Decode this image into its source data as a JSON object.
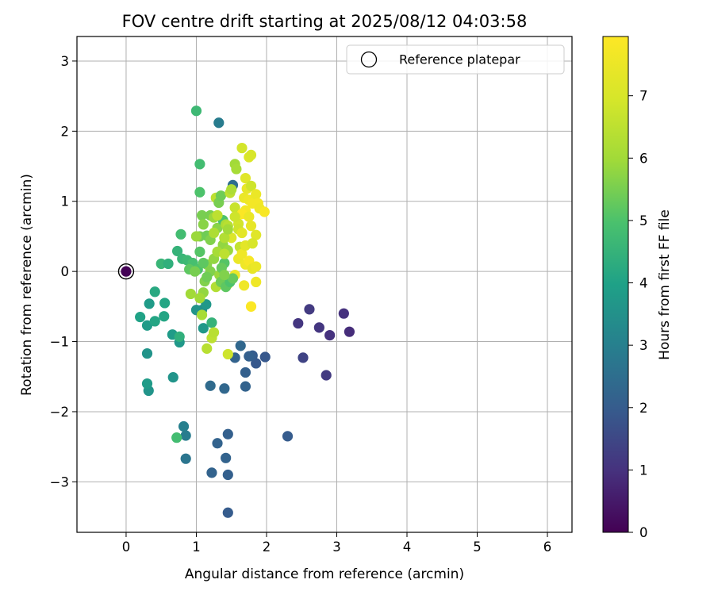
{
  "chart_data": {
    "type": "scatter",
    "title": "FOV centre drift starting at 2025/08/12 04:03:58",
    "xlabel": "Angular distance from reference (arcmin)",
    "ylabel": "Rotation from reference (arcmin)",
    "xlim": [
      -0.7,
      6.35
    ],
    "ylim": [
      -3.72,
      3.35
    ],
    "xticks": [
      0,
      1,
      2,
      3,
      4,
      5,
      6
    ],
    "yticks": [
      -3,
      -2,
      -1,
      0,
      1,
      2,
      3
    ],
    "xtick_labels": [
      "0",
      "1",
      "2",
      "3",
      "4",
      "5",
      "6"
    ],
    "ytick_labels": [
      "−3",
      "−2",
      "−1",
      "0",
      "1",
      "2",
      "3"
    ],
    "grid": true,
    "legend": {
      "position": "top-right",
      "entries": [
        "Reference platepar"
      ]
    },
    "colorbar": {
      "label": "Hours from first FF file",
      "colormap": "viridis",
      "range": [
        0,
        7.95
      ],
      "ticks": [
        0,
        1,
        2,
        3,
        4,
        5,
        6,
        7
      ],
      "tick_labels": [
        "0",
        "1",
        "2",
        "3",
        "4",
        "5",
        "6",
        "7"
      ]
    },
    "reference_point": {
      "x": 0,
      "y": 0
    },
    "points": [
      {
        "x": 0.0,
        "y": 0.0,
        "h": 0.05
      },
      {
        "x": 2.45,
        "y": -0.74,
        "h": 1.1
      },
      {
        "x": 2.61,
        "y": -0.54,
        "h": 1.2
      },
      {
        "x": 2.75,
        "y": -0.8,
        "h": 1.1
      },
      {
        "x": 2.9,
        "y": -0.91,
        "h": 1.0
      },
      {
        "x": 3.1,
        "y": -0.6,
        "h": 1.0
      },
      {
        "x": 3.18,
        "y": -0.86,
        "h": 0.9
      },
      {
        "x": 2.85,
        "y": -1.48,
        "h": 1.2
      },
      {
        "x": 2.52,
        "y": -1.23,
        "h": 1.4
      },
      {
        "x": 1.98,
        "y": -1.22,
        "h": 1.9
      },
      {
        "x": 1.85,
        "y": -1.31,
        "h": 1.9
      },
      {
        "x": 1.8,
        "y": -1.2,
        "h": 2.0
      },
      {
        "x": 1.75,
        "y": -1.21,
        "h": 2.1
      },
      {
        "x": 1.7,
        "y": -1.44,
        "h": 2.1
      },
      {
        "x": 1.7,
        "y": -1.64,
        "h": 2.2
      },
      {
        "x": 1.55,
        "y": -1.23,
        "h": 2.2
      },
      {
        "x": 1.63,
        "y": -1.06,
        "h": 2.3
      },
      {
        "x": 1.4,
        "y": -1.67,
        "h": 2.3
      },
      {
        "x": 1.2,
        "y": -1.63,
        "h": 2.4
      },
      {
        "x": 2.3,
        "y": -2.35,
        "h": 2.0
      },
      {
        "x": 1.45,
        "y": -2.32,
        "h": 2.1
      },
      {
        "x": 1.3,
        "y": -2.45,
        "h": 2.2
      },
      {
        "x": 1.42,
        "y": -2.66,
        "h": 2.2
      },
      {
        "x": 1.45,
        "y": -2.9,
        "h": 2.1
      },
      {
        "x": 1.22,
        "y": -2.87,
        "h": 2.2
      },
      {
        "x": 1.45,
        "y": -3.44,
        "h": 2.0
      },
      {
        "x": 0.85,
        "y": -2.67,
        "h": 2.7
      },
      {
        "x": 0.85,
        "y": -2.34,
        "h": 2.9
      },
      {
        "x": 0.82,
        "y": -2.21,
        "h": 3.0
      },
      {
        "x": 0.72,
        "y": -2.37,
        "h": 4.8
      },
      {
        "x": 1.32,
        "y": 2.12,
        "h": 2.9
      },
      {
        "x": 1.52,
        "y": 1.23,
        "h": 2.5
      },
      {
        "x": 0.32,
        "y": -1.7,
        "h": 3.6
      },
      {
        "x": 0.3,
        "y": -1.6,
        "h": 3.8
      },
      {
        "x": 0.3,
        "y": -1.17,
        "h": 3.6
      },
      {
        "x": 0.67,
        "y": -1.51,
        "h": 3.6
      },
      {
        "x": 0.76,
        "y": -1.01,
        "h": 3.7
      },
      {
        "x": 0.66,
        "y": -0.9,
        "h": 3.8
      },
      {
        "x": 0.76,
        "y": -0.93,
        "h": 4.4
      },
      {
        "x": 0.3,
        "y": -0.77,
        "h": 3.8
      },
      {
        "x": 0.2,
        "y": -0.65,
        "h": 4.0
      },
      {
        "x": 0.41,
        "y": -0.71,
        "h": 4.1
      },
      {
        "x": 0.54,
        "y": -0.64,
        "h": 4.1
      },
      {
        "x": 0.55,
        "y": -0.45,
        "h": 4.1
      },
      {
        "x": 0.33,
        "y": -0.46,
        "h": 3.8
      },
      {
        "x": 0.41,
        "y": -0.29,
        "h": 4.2
      },
      {
        "x": 1.08,
        "y": -0.55,
        "h": 3.4
      },
      {
        "x": 1.0,
        "y": -0.55,
        "h": 3.6
      },
      {
        "x": 1.14,
        "y": -0.47,
        "h": 3.7
      },
      {
        "x": 1.1,
        "y": -0.81,
        "h": 3.7
      },
      {
        "x": 1.22,
        "y": -0.73,
        "h": 4.5
      },
      {
        "x": 0.5,
        "y": 0.11,
        "h": 4.6
      },
      {
        "x": 0.6,
        "y": 0.11,
        "h": 4.4
      },
      {
        "x": 0.73,
        "y": 0.29,
        "h": 4.5
      },
      {
        "x": 0.8,
        "y": 0.18,
        "h": 4.6
      },
      {
        "x": 0.78,
        "y": 0.53,
        "h": 4.8
      },
      {
        "x": 0.87,
        "y": 0.16,
        "h": 4.7
      },
      {
        "x": 0.95,
        "y": 0.12,
        "h": 4.9
      },
      {
        "x": 0.9,
        "y": 0.03,
        "h": 5.2
      },
      {
        "x": 1.0,
        "y": 2.29,
        "h": 4.7
      },
      {
        "x": 1.05,
        "y": 1.53,
        "h": 4.8
      },
      {
        "x": 1.05,
        "y": 1.13,
        "h": 5.0
      },
      {
        "x": 1.08,
        "y": 0.8,
        "h": 5.5
      },
      {
        "x": 1.05,
        "y": 0.5,
        "h": 5.5
      },
      {
        "x": 1.05,
        "y": 0.28,
        "h": 5.1
      },
      {
        "x": 1.1,
        "y": 0.67,
        "h": 5.7
      },
      {
        "x": 1.15,
        "y": 0.51,
        "h": 5.4
      },
      {
        "x": 1.12,
        "y": -0.14,
        "h": 5.6
      },
      {
        "x": 1.1,
        "y": -0.3,
        "h": 5.8
      },
      {
        "x": 1.05,
        "y": -0.38,
        "h": 6.0
      },
      {
        "x": 1.02,
        "y": 0.03,
        "h": 5.0
      },
      {
        "x": 0.92,
        "y": -0.32,
        "h": 6.0
      },
      {
        "x": 1.08,
        "y": -0.62,
        "h": 6.1
      },
      {
        "x": 1.15,
        "y": -1.1,
        "h": 6.4
      },
      {
        "x": 1.22,
        "y": -0.95,
        "h": 6.5
      },
      {
        "x": 1.25,
        "y": -0.87,
        "h": 6.4
      },
      {
        "x": 1.2,
        "y": 0.45,
        "h": 5.6
      },
      {
        "x": 1.2,
        "y": 0.8,
        "h": 5.5
      },
      {
        "x": 1.25,
        "y": 0.77,
        "h": 5.9
      },
      {
        "x": 1.3,
        "y": 0.62,
        "h": 5.7
      },
      {
        "x": 1.25,
        "y": 0.55,
        "h": 6.2
      },
      {
        "x": 1.28,
        "y": 1.05,
        "h": 6.5
      },
      {
        "x": 1.32,
        "y": 0.98,
        "h": 5.5
      },
      {
        "x": 1.35,
        "y": 1.08,
        "h": 5.4
      },
      {
        "x": 1.38,
        "y": 0.73,
        "h": 5.0
      },
      {
        "x": 1.38,
        "y": 0.38,
        "h": 5.8
      },
      {
        "x": 1.4,
        "y": 0.12,
        "h": 5.1
      },
      {
        "x": 1.42,
        "y": 0.67,
        "h": 6.2
      },
      {
        "x": 1.45,
        "y": 0.65,
        "h": 6.4
      },
      {
        "x": 1.48,
        "y": 1.12,
        "h": 6.5
      },
      {
        "x": 1.5,
        "y": 1.17,
        "h": 6.2
      },
      {
        "x": 1.55,
        "y": 1.53,
        "h": 6.0
      },
      {
        "x": 1.57,
        "y": 1.46,
        "h": 6.1
      },
      {
        "x": 1.55,
        "y": 0.91,
        "h": 6.7
      },
      {
        "x": 1.6,
        "y": 0.68,
        "h": 6.9
      },
      {
        "x": 1.6,
        "y": 0.6,
        "h": 6.8
      },
      {
        "x": 1.62,
        "y": 0.35,
        "h": 6.6
      },
      {
        "x": 1.6,
        "y": 0.18,
        "h": 7.5
      },
      {
        "x": 1.65,
        "y": 0.25,
        "h": 7.6
      },
      {
        "x": 1.55,
        "y": -0.05,
        "h": 7.5
      },
      {
        "x": 1.68,
        "y": -0.2,
        "h": 7.6
      },
      {
        "x": 1.7,
        "y": 0.1,
        "h": 7.6
      },
      {
        "x": 1.7,
        "y": 0.37,
        "h": 7.3
      },
      {
        "x": 1.75,
        "y": 0.15,
        "h": 7.8
      },
      {
        "x": 1.8,
        "y": 0.04,
        "h": 7.4
      },
      {
        "x": 1.85,
        "y": 0.07,
        "h": 7.5
      },
      {
        "x": 1.85,
        "y": -0.15,
        "h": 7.6
      },
      {
        "x": 1.78,
        "y": -0.5,
        "h": 7.9
      },
      {
        "x": 1.45,
        "y": -0.18,
        "h": 6.6
      },
      {
        "x": 1.45,
        "y": -1.18,
        "h": 6.8
      },
      {
        "x": 1.65,
        "y": 1.76,
        "h": 6.9
      },
      {
        "x": 1.75,
        "y": 1.63,
        "h": 7.1
      },
      {
        "x": 1.78,
        "y": 1.66,
        "h": 7.0
      },
      {
        "x": 1.7,
        "y": 1.33,
        "h": 7.2
      },
      {
        "x": 1.72,
        "y": 1.18,
        "h": 7.4
      },
      {
        "x": 1.78,
        "y": 1.22,
        "h": 6.8
      },
      {
        "x": 1.68,
        "y": 1.05,
        "h": 7.5
      },
      {
        "x": 1.75,
        "y": 1.02,
        "h": 7.6
      },
      {
        "x": 1.8,
        "y": 0.97,
        "h": 7.7
      },
      {
        "x": 1.85,
        "y": 1.1,
        "h": 7.5
      },
      {
        "x": 1.88,
        "y": 0.97,
        "h": 7.7
      },
      {
        "x": 1.9,
        "y": 0.9,
        "h": 7.6
      },
      {
        "x": 1.97,
        "y": 0.85,
        "h": 7.8
      },
      {
        "x": 1.7,
        "y": 0.87,
        "h": 7.7
      },
      {
        "x": 1.65,
        "y": 0.82,
        "h": 7.9
      },
      {
        "x": 1.75,
        "y": 0.78,
        "h": 7.5
      },
      {
        "x": 1.78,
        "y": 0.65,
        "h": 7.4
      },
      {
        "x": 1.85,
        "y": 0.52,
        "h": 7.2
      },
      {
        "x": 1.8,
        "y": 0.4,
        "h": 7.0
      },
      {
        "x": 1.65,
        "y": 0.55,
        "h": 7.3
      },
      {
        "x": 1.5,
        "y": 0.48,
        "h": 7.1
      },
      {
        "x": 1.0,
        "y": 0.5,
        "h": 5.9
      },
      {
        "x": 1.15,
        "y": 0.1,
        "h": 5.7
      },
      {
        "x": 1.2,
        "y": 0.0,
        "h": 5.6
      },
      {
        "x": 1.25,
        "y": 0.18,
        "h": 5.8
      },
      {
        "x": 1.3,
        "y": 0.28,
        "h": 6.1
      },
      {
        "x": 1.33,
        "y": -0.05,
        "h": 5.9
      },
      {
        "x": 1.36,
        "y": 0.05,
        "h": 5.3
      },
      {
        "x": 1.28,
        "y": -0.22,
        "h": 6.3
      },
      {
        "x": 1.35,
        "y": -0.15,
        "h": 5.4
      },
      {
        "x": 1.42,
        "y": -0.22,
        "h": 5.2
      },
      {
        "x": 1.48,
        "y": -0.15,
        "h": 5.0
      },
      {
        "x": 1.52,
        "y": -0.1,
        "h": 5.3
      },
      {
        "x": 1.4,
        "y": -0.05,
        "h": 5.6
      },
      {
        "x": 1.1,
        "y": 0.12,
        "h": 5.2
      },
      {
        "x": 0.98,
        "y": 0.0,
        "h": 5.5
      },
      {
        "x": 1.15,
        "y": -0.08,
        "h": 5.4
      },
      {
        "x": 1.4,
        "y": 0.48,
        "h": 6.3
      },
      {
        "x": 1.45,
        "y": 0.3,
        "h": 5.9
      },
      {
        "x": 1.4,
        "y": 0.25,
        "h": 6.5
      },
      {
        "x": 1.55,
        "y": 0.78,
        "h": 6.8
      },
      {
        "x": 1.3,
        "y": 0.8,
        "h": 6.5
      },
      {
        "x": 1.45,
        "y": 0.6,
        "h": 6.0
      }
    ]
  }
}
